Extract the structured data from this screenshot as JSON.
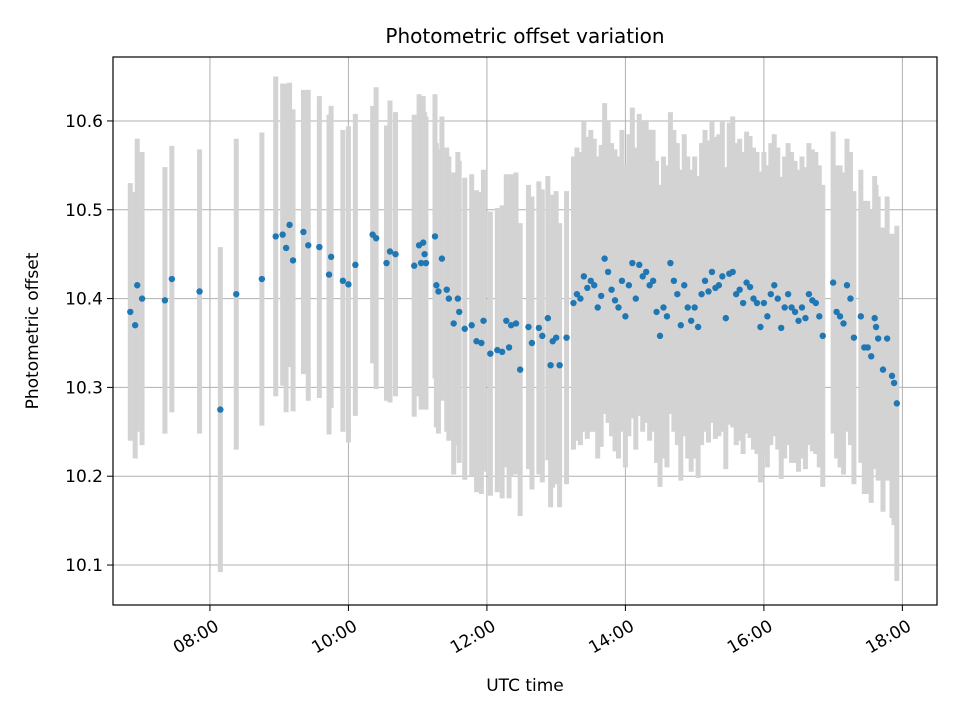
{
  "chart_data": {
    "type": "scatter",
    "title": "Photometric offset variation",
    "xlabel": "UTC time",
    "ylabel": "Photometric offset",
    "x_unit": "hours UTC",
    "xlim": [
      6.6,
      18.5
    ],
    "ylim": [
      10.055,
      10.672
    ],
    "xticks": [
      {
        "value": 8,
        "label": "08:00"
      },
      {
        "value": 10,
        "label": "10:00"
      },
      {
        "value": 12,
        "label": "12:00"
      },
      {
        "value": 14,
        "label": "14:00"
      },
      {
        "value": 16,
        "label": "16:00"
      },
      {
        "value": 18,
        "label": "18:00"
      }
    ],
    "yticks": [
      {
        "value": 10.1,
        "label": "10.1"
      },
      {
        "value": 10.2,
        "label": "10.2"
      },
      {
        "value": 10.3,
        "label": "10.3"
      },
      {
        "value": 10.4,
        "label": "10.4"
      },
      {
        "value": 10.5,
        "label": "10.5"
      },
      {
        "value": 10.6,
        "label": "10.6"
      }
    ],
    "grid": true,
    "marker_color": "#1f77b4",
    "errorbar_color": "#d3d3d3",
    "points": [
      [
        6.85,
        10.385,
        0.145
      ],
      [
        6.92,
        10.37,
        0.15
      ],
      [
        6.95,
        10.415,
        0.165
      ],
      [
        7.02,
        10.4,
        0.165
      ],
      [
        7.35,
        10.398,
        0.15
      ],
      [
        7.45,
        10.422,
        0.15
      ],
      [
        7.85,
        10.408,
        0.16
      ],
      [
        8.15,
        10.275,
        0.183
      ],
      [
        8.38,
        10.405,
        0.175
      ],
      [
        8.75,
        10.422,
        0.165
      ],
      [
        8.95,
        10.47,
        0.18
      ],
      [
        9.05,
        10.472,
        0.17
      ],
      [
        9.1,
        10.457,
        0.185
      ],
      [
        9.15,
        10.483,
        0.16
      ],
      [
        9.2,
        10.443,
        0.17
      ],
      [
        9.35,
        10.475,
        0.16
      ],
      [
        9.42,
        10.46,
        0.175
      ],
      [
        9.58,
        10.458,
        0.17
      ],
      [
        9.72,
        10.427,
        0.18
      ],
      [
        9.75,
        10.447,
        0.17
      ],
      [
        9.92,
        10.42,
        0.17
      ],
      [
        10.0,
        10.416,
        0.178
      ],
      [
        10.1,
        10.438,
        0.17
      ],
      [
        10.35,
        10.472,
        0.145
      ],
      [
        10.4,
        10.468,
        0.17
      ],
      [
        10.55,
        10.44,
        0.155
      ],
      [
        10.6,
        10.453,
        0.17
      ],
      [
        10.68,
        10.45,
        0.16
      ],
      [
        10.95,
        10.437,
        0.17
      ],
      [
        11.02,
        10.46,
        0.17
      ],
      [
        11.05,
        10.44,
        0.165
      ],
      [
        11.08,
        10.463,
        0.165
      ],
      [
        11.1,
        10.45,
        0.16
      ],
      [
        11.12,
        10.44,
        0.165
      ],
      [
        11.25,
        10.47,
        0.16
      ],
      [
        11.27,
        10.415,
        0.16
      ],
      [
        11.3,
        10.408,
        0.16
      ],
      [
        11.35,
        10.445,
        0.16
      ],
      [
        11.42,
        10.41,
        0.16
      ],
      [
        11.45,
        10.4,
        0.16
      ],
      [
        11.52,
        10.372,
        0.17
      ],
      [
        11.58,
        10.4,
        0.165
      ],
      [
        11.6,
        10.385,
        0.17
      ],
      [
        11.68,
        10.366,
        0.17
      ],
      [
        11.78,
        10.37,
        0.17
      ],
      [
        11.85,
        10.352,
        0.17
      ],
      [
        11.92,
        10.35,
        0.17
      ],
      [
        11.95,
        10.375,
        0.17
      ],
      [
        12.05,
        10.338,
        0.16
      ],
      [
        12.15,
        10.342,
        0.16
      ],
      [
        12.22,
        10.34,
        0.165
      ],
      [
        12.28,
        10.375,
        0.165
      ],
      [
        12.32,
        10.345,
        0.17
      ],
      [
        12.35,
        10.37,
        0.17
      ],
      [
        12.42,
        10.372,
        0.17
      ],
      [
        12.48,
        10.32,
        0.165
      ],
      [
        12.6,
        10.368,
        0.16
      ],
      [
        12.65,
        10.35,
        0.165
      ],
      [
        12.75,
        10.367,
        0.165
      ],
      [
        12.8,
        10.358,
        0.165
      ],
      [
        12.88,
        10.378,
        0.16
      ],
      [
        12.92,
        10.325,
        0.16
      ],
      [
        12.95,
        10.352,
        0.165
      ],
      [
        13.0,
        10.356,
        0.165
      ],
      [
        13.05,
        10.325,
        0.16
      ],
      [
        13.15,
        10.356,
        0.165
      ],
      [
        13.25,
        10.395,
        0.165
      ],
      [
        13.3,
        10.405,
        0.165
      ],
      [
        13.35,
        10.4,
        0.165
      ],
      [
        13.4,
        10.425,
        0.175
      ],
      [
        13.45,
        10.412,
        0.17
      ],
      [
        13.5,
        10.42,
        0.17
      ],
      [
        13.55,
        10.415,
        0.165
      ],
      [
        13.6,
        10.39,
        0.17
      ],
      [
        13.65,
        10.403,
        0.17
      ],
      [
        13.7,
        10.445,
        0.175
      ],
      [
        13.75,
        10.43,
        0.17
      ],
      [
        13.8,
        10.41,
        0.165
      ],
      [
        13.85,
        10.398,
        0.17
      ],
      [
        13.9,
        10.39,
        0.17
      ],
      [
        13.95,
        10.42,
        0.17
      ],
      [
        14.0,
        10.38,
        0.17
      ],
      [
        14.05,
        10.415,
        0.17
      ],
      [
        14.1,
        10.44,
        0.175
      ],
      [
        14.15,
        10.4,
        0.17
      ],
      [
        14.2,
        10.438,
        0.17
      ],
      [
        14.25,
        10.425,
        0.175
      ],
      [
        14.3,
        10.43,
        0.17
      ],
      [
        14.35,
        10.415,
        0.175
      ],
      [
        14.4,
        10.42,
        0.17
      ],
      [
        14.45,
        10.385,
        0.17
      ],
      [
        14.5,
        10.358,
        0.17
      ],
      [
        14.55,
        10.39,
        0.17
      ],
      [
        14.6,
        10.38,
        0.17
      ],
      [
        14.65,
        10.44,
        0.17
      ],
      [
        14.7,
        10.42,
        0.17
      ],
      [
        14.75,
        10.405,
        0.17
      ],
      [
        14.8,
        10.37,
        0.175
      ],
      [
        14.85,
        10.415,
        0.17
      ],
      [
        14.9,
        10.39,
        0.17
      ],
      [
        14.95,
        10.375,
        0.17
      ],
      [
        15.0,
        10.39,
        0.17
      ],
      [
        15.05,
        10.368,
        0.17
      ],
      [
        15.1,
        10.405,
        0.17
      ],
      [
        15.15,
        10.42,
        0.17
      ],
      [
        15.2,
        10.408,
        0.17
      ],
      [
        15.25,
        10.43,
        0.17
      ],
      [
        15.3,
        10.412,
        0.17
      ],
      [
        15.35,
        10.415,
        0.17
      ],
      [
        15.4,
        10.425,
        0.175
      ],
      [
        15.45,
        10.378,
        0.17
      ],
      [
        15.5,
        10.428,
        0.17
      ],
      [
        15.55,
        10.43,
        0.175
      ],
      [
        15.6,
        10.405,
        0.17
      ],
      [
        15.65,
        10.41,
        0.17
      ],
      [
        15.7,
        10.395,
        0.17
      ],
      [
        15.75,
        10.418,
        0.17
      ],
      [
        15.8,
        10.413,
        0.17
      ],
      [
        15.85,
        10.4,
        0.17
      ],
      [
        15.9,
        10.395,
        0.17
      ],
      [
        15.95,
        10.368,
        0.175
      ],
      [
        16.0,
        10.395,
        0.17
      ],
      [
        16.05,
        10.38,
        0.17
      ],
      [
        16.1,
        10.405,
        0.17
      ],
      [
        16.15,
        10.415,
        0.17
      ],
      [
        16.2,
        10.4,
        0.17
      ],
      [
        16.25,
        10.367,
        0.17
      ],
      [
        16.3,
        10.39,
        0.17
      ],
      [
        16.35,
        10.405,
        0.17
      ],
      [
        16.4,
        10.39,
        0.175
      ],
      [
        16.45,
        10.385,
        0.17
      ],
      [
        16.5,
        10.375,
        0.17
      ],
      [
        16.55,
        10.39,
        0.17
      ],
      [
        16.6,
        10.378,
        0.17
      ],
      [
        16.65,
        10.405,
        0.17
      ],
      [
        16.7,
        10.398,
        0.17
      ],
      [
        16.75,
        10.395,
        0.17
      ],
      [
        16.8,
        10.38,
        0.17
      ],
      [
        16.85,
        10.358,
        0.17
      ],
      [
        17.0,
        10.418,
        0.17
      ],
      [
        17.05,
        10.385,
        0.165
      ],
      [
        17.1,
        10.38,
        0.17
      ],
      [
        17.15,
        10.372,
        0.17
      ],
      [
        17.2,
        10.415,
        0.165
      ],
      [
        17.25,
        10.4,
        0.165
      ],
      [
        17.3,
        10.356,
        0.165
      ],
      [
        17.4,
        10.38,
        0.165
      ],
      [
        17.45,
        10.345,
        0.165
      ],
      [
        17.5,
        10.345,
        0.165
      ],
      [
        17.55,
        10.335,
        0.165
      ],
      [
        17.6,
        10.378,
        0.16
      ],
      [
        17.62,
        10.368,
        0.16
      ],
      [
        17.65,
        10.355,
        0.16
      ],
      [
        17.72,
        10.32,
        0.16
      ],
      [
        17.78,
        10.355,
        0.16
      ],
      [
        17.85,
        10.313,
        0.16
      ],
      [
        17.88,
        10.305,
        0.16
      ],
      [
        17.92,
        10.282,
        0.2
      ]
    ]
  }
}
